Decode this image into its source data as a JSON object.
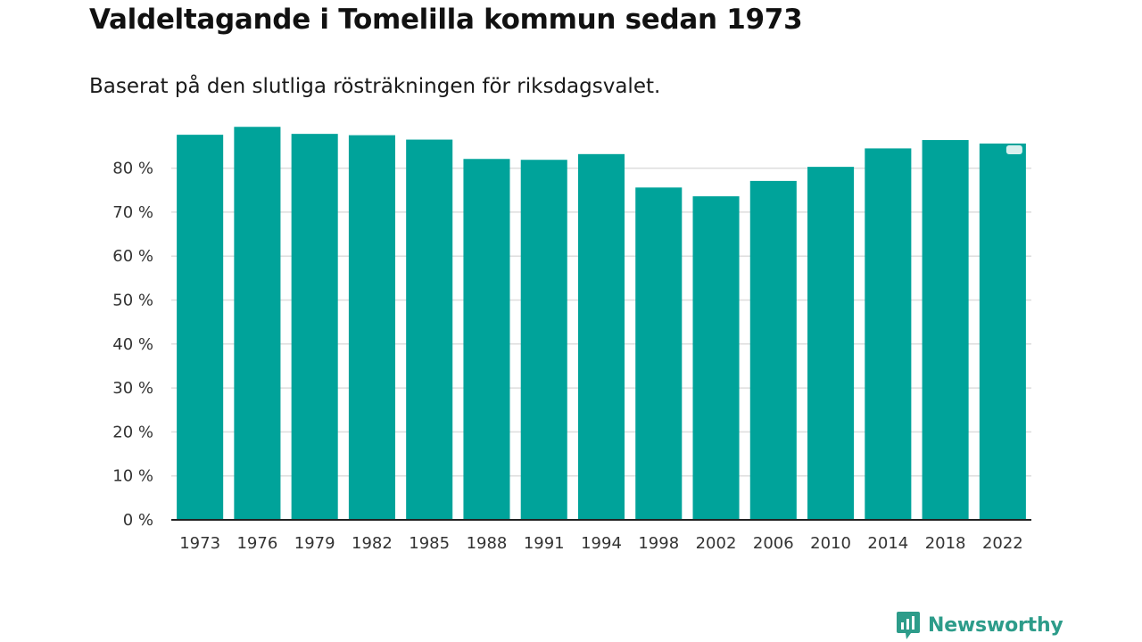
{
  "header": {
    "title": "Valdeltagande i Tomelilla kommun sedan 1973",
    "subtitle": "Baserat på den slutliga rösträkningen för riksdagsvalet."
  },
  "brand": {
    "name": "Newsworthy",
    "color": "#2d9c8a"
  },
  "colors": {
    "bar": "#00a39a",
    "grid": "#dddddd",
    "axis": "#222222",
    "marker": "#d9f0ee"
  },
  "chart_data": {
    "type": "bar",
    "title": "Valdeltagande i Tomelilla kommun sedan 1973",
    "subtitle": "Baserat på den slutliga rösträkningen för riksdagsvalet.",
    "xlabel": "",
    "ylabel": "",
    "ylim": [
      0,
      90
    ],
    "yticks": [
      0,
      10,
      20,
      30,
      40,
      50,
      60,
      70,
      80
    ],
    "ytick_labels": [
      "0 %",
      "10 %",
      "20 %",
      "30 %",
      "40 %",
      "50 %",
      "60 %",
      "70 %",
      "80 %"
    ],
    "grid": true,
    "legend": "none",
    "categories": [
      "1973",
      "1976",
      "1979",
      "1982",
      "1985",
      "1988",
      "1991",
      "1994",
      "1998",
      "2002",
      "2006",
      "2010",
      "2014",
      "2018",
      "2022"
    ],
    "values": [
      87.6,
      89.4,
      87.8,
      87.5,
      86.5,
      82.1,
      81.9,
      83.2,
      75.6,
      73.6,
      77.1,
      80.3,
      84.5,
      86.4,
      85.6
    ],
    "highlight_category": "2022"
  }
}
